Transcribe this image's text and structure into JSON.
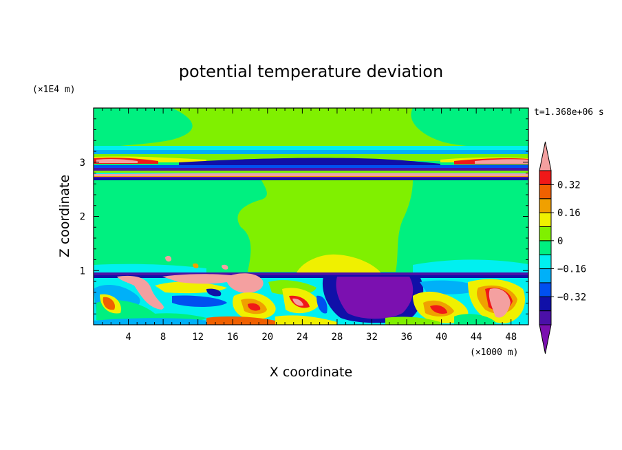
{
  "chart_data": {
    "type": "heatmap",
    "title": "potential temperature deviation",
    "xlabel": "X coordinate",
    "ylabel": "Z coordinate",
    "x_unit": "(×1000 m)",
    "y_unit": "(×1E4 m)",
    "time_label": "t=1.368e+06 s",
    "xlim": [
      0,
      50
    ],
    "ylim": [
      0,
      4
    ],
    "x_ticks": [
      "4",
      "8",
      "12",
      "16",
      "20",
      "24",
      "28",
      "32",
      "36",
      "40",
      "44",
      "48"
    ],
    "y_ticks": [
      "1",
      "2",
      "3"
    ],
    "colorbar": {
      "levels": [
        -0.48,
        -0.4,
        -0.32,
        -0.24,
        -0.16,
        -0.08,
        0,
        0.08,
        0.16,
        0.24,
        0.32,
        0.4
      ],
      "labels": [
        "0.32",
        "0.16",
        "0",
        "−0.16",
        "−0.32"
      ],
      "colors": [
        "#7b10b0",
        "#4b10a8",
        "#1010a8",
        "#0050f0",
        "#00b0f8",
        "#00f0f0",
        "#00f080",
        "#80f000",
        "#f0f000",
        "#f0a000",
        "#f06000",
        "#f01818",
        "#f4a0a0"
      ]
    }
  }
}
